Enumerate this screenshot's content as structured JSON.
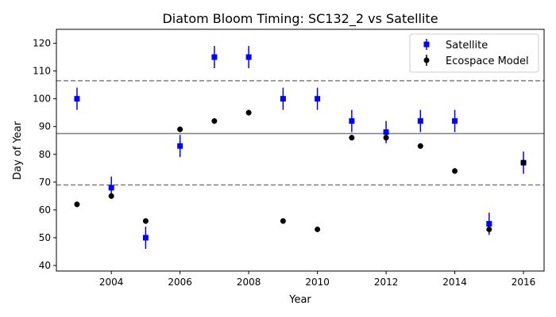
{
  "chart_data": {
    "type": "scatter",
    "title": "Diatom Bloom Timing: SC132_2 vs Satellite",
    "xlabel": "Year",
    "ylabel": "Day of Year",
    "xlim": [
      2002.4,
      2016.6
    ],
    "ylim": [
      38,
      125
    ],
    "xticks": [
      2004,
      2006,
      2008,
      2010,
      2012,
      2014,
      2016
    ],
    "yticks": [
      40,
      50,
      60,
      70,
      80,
      90,
      100,
      110,
      120
    ],
    "grid": false,
    "legend_position": "top-right",
    "series": [
      {
        "name": "Satellite",
        "color": "#0000ff",
        "marker": "square",
        "x": [
          2003,
          2004,
          2005,
          2006,
          2007,
          2008,
          2009,
          2010,
          2011,
          2012,
          2013,
          2014,
          2015,
          2016
        ],
        "y": [
          100,
          68,
          50,
          83,
          115,
          115,
          100,
          100,
          92,
          88,
          92,
          92,
          55,
          77
        ],
        "yerr": [
          4,
          4,
          4,
          4,
          4,
          4,
          4,
          4,
          4,
          4,
          4,
          4,
          4,
          4
        ]
      },
      {
        "name": "Ecospace Model",
        "color": "#000000",
        "marker": "circle",
        "x": [
          2003,
          2004,
          2005,
          2006,
          2007,
          2008,
          2009,
          2010,
          2011,
          2012,
          2013,
          2014,
          2015,
          2016
        ],
        "y": [
          62,
          65,
          56,
          89,
          92,
          95,
          56,
          53,
          86,
          86,
          83,
          74,
          53,
          77
        ],
        "yerr": [
          1,
          1,
          1,
          1,
          1,
          1,
          1,
          1,
          1,
          1,
          1,
          1,
          1,
          1
        ]
      }
    ],
    "reference_lines": [
      {
        "y": 87.5,
        "style": "solid",
        "color": "#808080"
      },
      {
        "y": 106.5,
        "style": "dashed",
        "color": "#808080"
      },
      {
        "y": 69,
        "style": "dashed",
        "color": "#808080"
      }
    ]
  }
}
